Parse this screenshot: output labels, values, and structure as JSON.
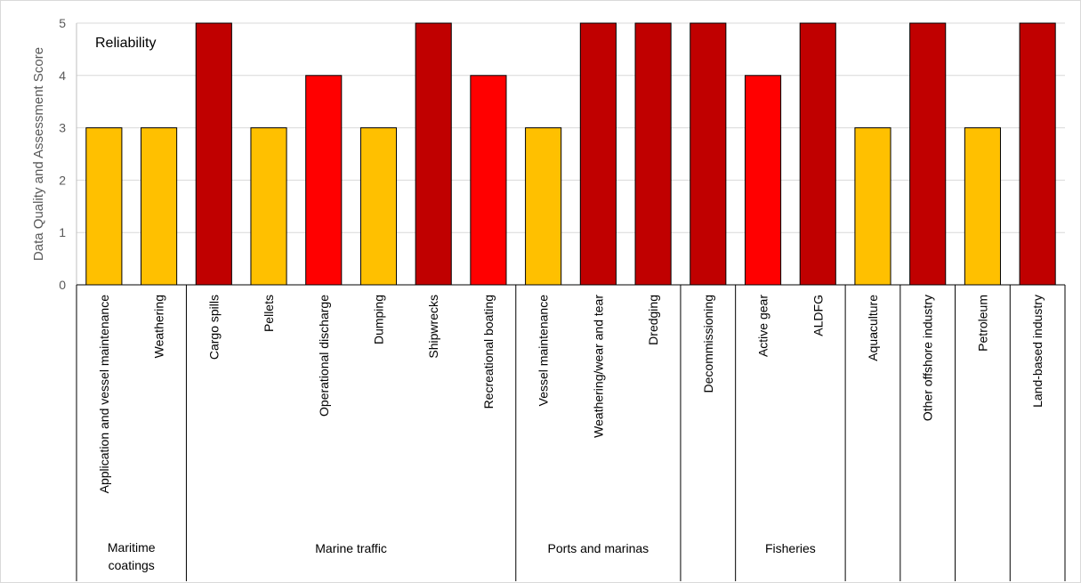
{
  "chart_data": {
    "type": "bar",
    "annotation": "Reliability",
    "ylabel": "Data Quality and Assessment Score",
    "ylim": [
      0,
      5
    ],
    "yticks": [
      "0",
      "1",
      "2",
      "3",
      "4",
      "5"
    ],
    "grid": true,
    "categories": [
      "Application and vessel maintenance",
      "Weathering",
      "Cargo spills",
      "Pellets",
      "Operational discharge",
      "Dumping",
      "Shipwrecks",
      "Recreational boating",
      "Vessel maintenance",
      "Weathering/wear and tear",
      "Dredging",
      "Decommissioning",
      "Active gear",
      "ALDFG",
      "Aquaculture",
      "Other offshore industry",
      "Petroleum",
      "Land-based industry"
    ],
    "values": [
      3,
      3,
      5,
      3,
      4,
      3,
      5,
      4,
      3,
      5,
      5,
      5,
      4,
      5,
      3,
      5,
      3,
      5
    ],
    "groups": [
      {
        "label": "Maritime coatings",
        "start": 0,
        "end": 1
      },
      {
        "label": "Marine traffic",
        "start": 2,
        "end": 7
      },
      {
        "label": "Ports and marinas",
        "start": 8,
        "end": 10
      },
      {
        "label": "",
        "start": 11,
        "end": 11
      },
      {
        "label": "Fisheries",
        "start": 12,
        "end": 13
      },
      {
        "label": "",
        "start": 14,
        "end": 14
      },
      {
        "label": "",
        "start": 15,
        "end": 15
      },
      {
        "label": "",
        "start": 16,
        "end": 16
      },
      {
        "label": "",
        "start": 17,
        "end": 17
      }
    ],
    "colors": {
      "3": "#FFC000",
      "4": "#FF0000",
      "5": "#C00000"
    },
    "bar_edge": "#000000",
    "grid_color": "#d9d9d9"
  }
}
